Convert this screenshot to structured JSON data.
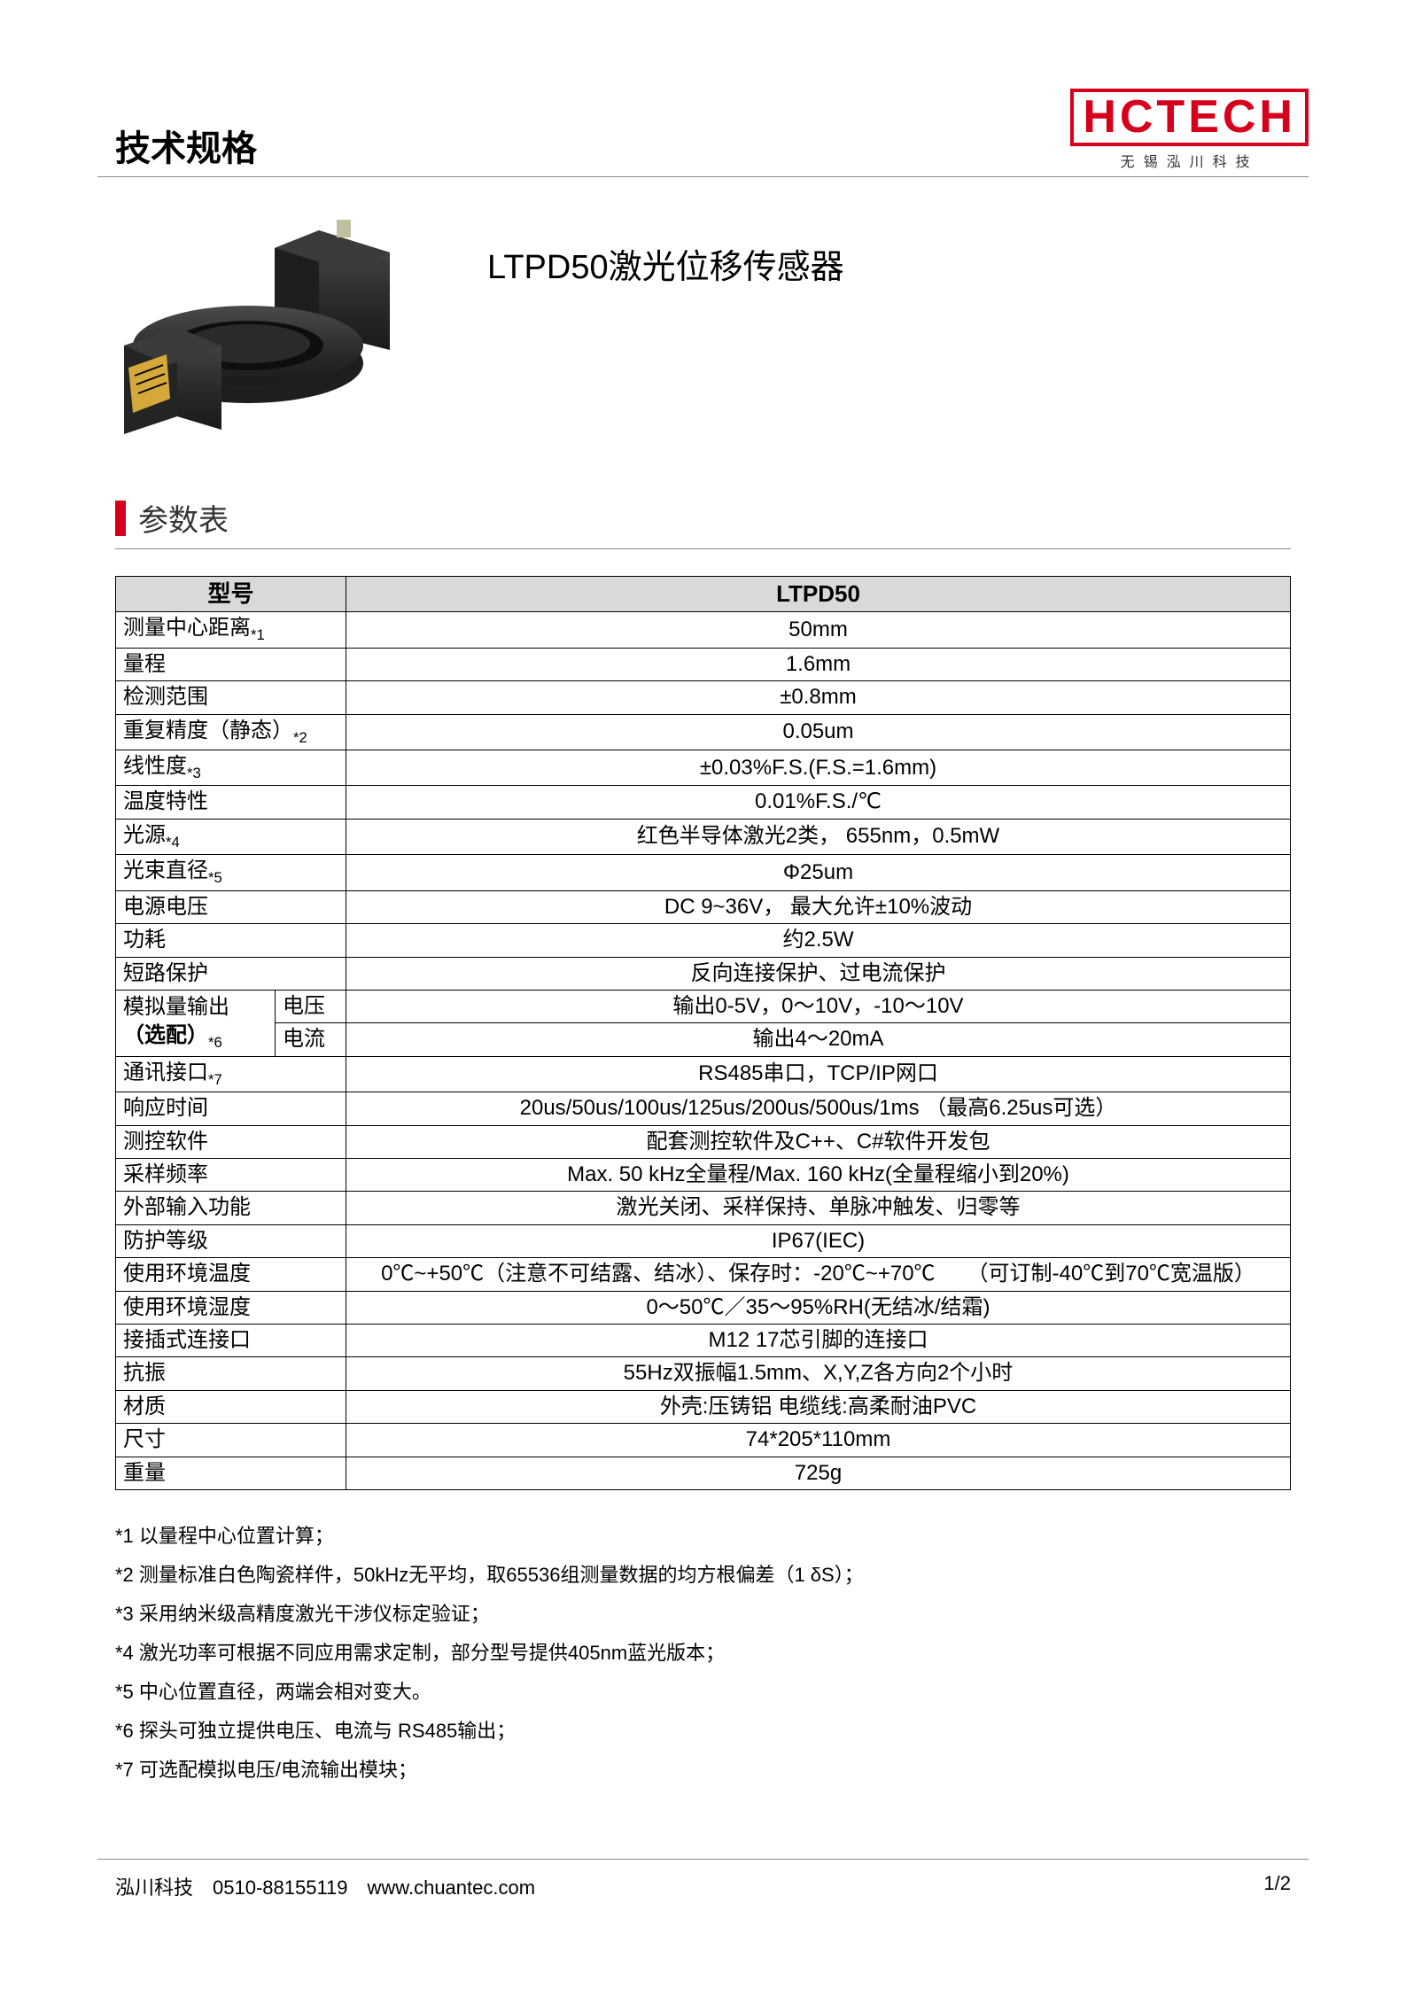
{
  "header": {
    "title": "技术规格",
    "logo_text": "HCTECH",
    "logo_sub": "无锡泓川科技"
  },
  "product": {
    "title": "LTPD50激光位移传感器",
    "image_colors": {
      "body": "#2a2a2a",
      "shadow": "#1a1a1a",
      "highlight": "#4a4a4a",
      "label": "#d4a83a",
      "connector": "#c0c0a0"
    }
  },
  "section": {
    "title": "参数表",
    "accent_color": "#d6001c"
  },
  "table": {
    "header_bg": "#d9d9d9",
    "col1_header": "型号",
    "col2_header": "LTPD50",
    "rows": [
      {
        "label_html": "测量中心距离<sub class='note-ref'>*1</sub>",
        "value": "50mm"
      },
      {
        "label_html": "量程",
        "value": "1.6mm"
      },
      {
        "label_html": "检测范围",
        "value": "±0.8mm"
      },
      {
        "label_html": "重复精度（静态）<sub class='note-ref'>*2</sub>",
        "value": "0.05um"
      },
      {
        "label_html": "线性度<sub class='note-ref'>*3</sub>",
        "value": "±0.03%F.S.(F.S.=1.6mm)"
      },
      {
        "label_html": "温度特性",
        "value": "0.01%F.S./℃"
      },
      {
        "label_html": "光源<sub class='note-ref'>*4</sub>",
        "value": "红色半导体激光2类， 655nm，0.5mW"
      },
      {
        "label_html": "光束直径<sub class='note-ref'>*5</sub>",
        "value": "Φ25um"
      },
      {
        "label_html": "电源电压",
        "value": "DC 9~36V， 最大允许±10%波动"
      },
      {
        "label_html": "功耗",
        "value": "约2.5W"
      },
      {
        "label_html": "短路保护",
        "value": "反向连接保护、过电流保护"
      }
    ],
    "analog_output": {
      "label_html": "模拟量输出<br><b>（选配）</b><sub class='note-ref'>*6</sub>",
      "sub1_label": "电压",
      "sub1_value": "输出0-5V，0～10V，-10～10V",
      "sub2_label": "电流",
      "sub2_value": "输出4～20mA"
    },
    "rows2": [
      {
        "label_html": "通讯接口<sub class='note-ref'>*7</sub>",
        "value": "RS485串口，TCP/IP网口"
      },
      {
        "label_html": "响应时间",
        "value": "20us/50us/100us/125us/200us/500us/1ms （最高6.25us可选）"
      },
      {
        "label_html": "测控软件",
        "value": "配套测控软件及C++、C#软件开发包"
      },
      {
        "label_html": "采样频率",
        "value": "Max. 50 kHz全量程/Max. 160 kHz(全量程缩小到20%)"
      },
      {
        "label_html": "外部输入功能",
        "value": "激光关闭、采样保持、单脉冲触发、归零等"
      },
      {
        "label_html": "防护等级",
        "value": "IP67(IEC)"
      },
      {
        "label_html": "使用环境温度",
        "value": "0℃~+50℃（注意不可结露、结冰）、保存时：-20℃~+70℃　　（可订制-40℃到70℃宽温版）"
      },
      {
        "label_html": "使用环境湿度",
        "value": "0～50℃／35～95%RH(无结冰/结霜)"
      },
      {
        "label_html": "接插式连接口",
        "value": "M12 17芯引脚的连接口"
      },
      {
        "label_html": "抗振",
        "value": "55Hz双振幅1.5mm、X,Y,Z各方向2个小时"
      },
      {
        "label_html": "材质",
        "value": "外壳:压铸铝 电缆线:高柔耐油PVC"
      },
      {
        "label_html": "尺寸",
        "value": "74*205*110mm"
      },
      {
        "label_html": "重量",
        "value": "725g"
      }
    ]
  },
  "notes": [
    "*1 以量程中心位置计算；",
    "*2 测量标准白色陶瓷样件，50kHz无平均，取65536组测量数据的均方根偏差（1 δS）；",
    "*3 采用纳米级高精度激光干涉仪标定验证；",
    "*4 激光功率可根据不同应用需求定制，部分型号提供405nm蓝光版本；",
    "*5 中心位置直径，两端会相对变大。",
    "*6 探头可独立提供电压、电流与 RS485输出；",
    "*7 可选配模拟电压/电流输出模块；"
  ],
  "footer": {
    "left": "泓川科技　0510-88155119　www.chuantec.com",
    "right": "1/2"
  }
}
